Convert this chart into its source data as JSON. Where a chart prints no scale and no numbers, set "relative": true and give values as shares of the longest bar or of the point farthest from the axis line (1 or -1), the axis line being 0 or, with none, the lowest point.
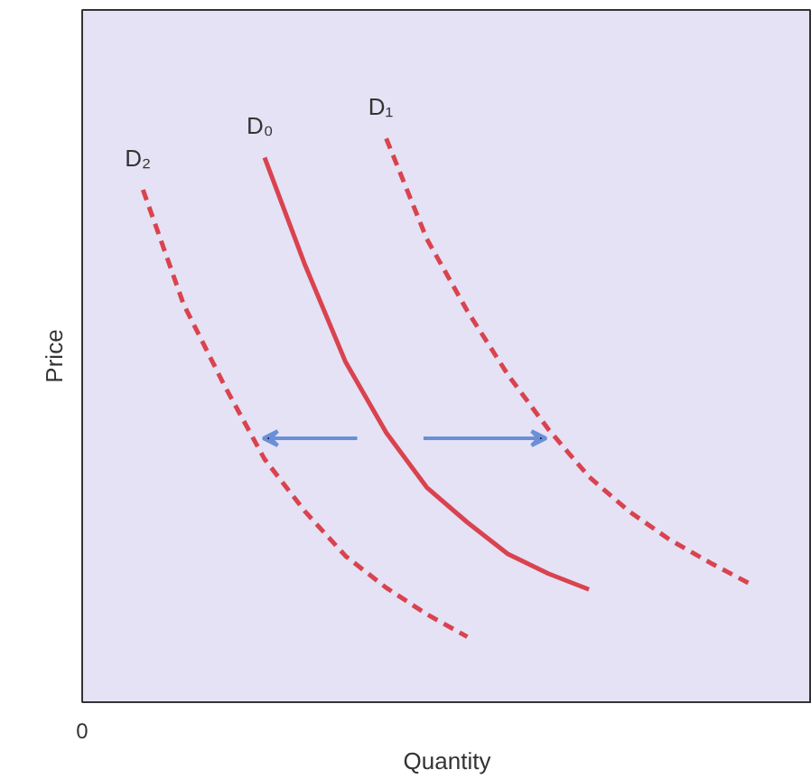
{
  "chart_data": {
    "type": "line",
    "relative": true,
    "xlabel": "Quantity",
    "ylabel": "Price",
    "annotations": [
      "0"
    ],
    "categories": [
      null,
      null,
      null,
      null,
      null,
      null,
      null,
      null,
      null,
      null,
      null,
      null,
      null,
      null,
      null,
      null,
      null,
      null
    ],
    "series": [
      {
        "name": "D₂",
        "color": "#d9434f",
        "line_style": "dashed",
        "values": [
          null,
          0.909,
          0.706,
          0.563,
          0.431,
          0.338,
          0.259,
          0.203,
          0.156,
          0.116,
          null,
          null,
          null,
          null,
          null,
          null,
          null,
          null
        ]
      },
      {
        "name": "D₀",
        "color": "#d9434f",
        "line_style": "solid",
        "values": [
          null,
          null,
          null,
          null,
          0.966,
          0.775,
          0.603,
          0.478,
          0.381,
          0.319,
          0.263,
          0.228,
          0.2,
          null,
          null,
          null,
          null,
          null
        ]
      },
      {
        "name": "D₁",
        "color": "#d9434f",
        "line_style": "dashed",
        "values": [
          null,
          null,
          null,
          null,
          null,
          null,
          null,
          1.0,
          0.822,
          0.694,
          0.581,
          0.484,
          0.4,
          0.338,
          0.288,
          0.247,
          0.209,
          null
        ]
      }
    ]
  }
}
